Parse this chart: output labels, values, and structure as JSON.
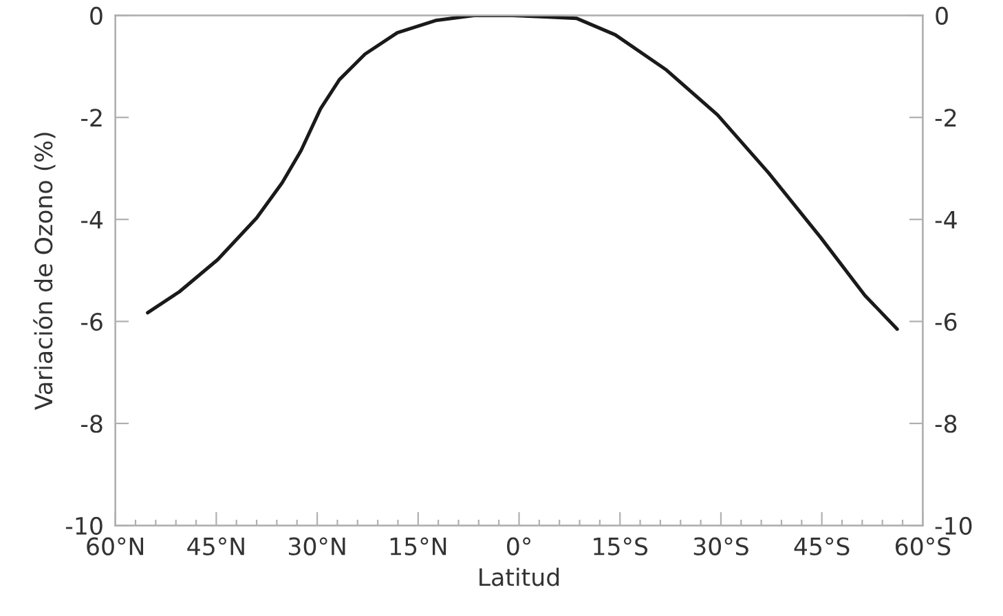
{
  "chart_data": {
    "type": "line",
    "xlabel": "Latitud",
    "ylabel": "Variación de Ozono (%)",
    "x": [
      55.2,
      50.5,
      44.8,
      39.0,
      35.2,
      32.4,
      29.5,
      26.7,
      22.9,
      18.1,
      12.4,
      6.7,
      1.0,
      -3.8,
      -8.6,
      -14.3,
      -21.9,
      -29.5,
      -37.1,
      -44.8,
      -51.4,
      -56.2
    ],
    "series": [
      {
        "color": "#1a1a1a",
        "values": [
          -5.83,
          -5.42,
          -4.79,
          -3.97,
          -3.28,
          -2.65,
          -1.83,
          -1.26,
          -0.76,
          -0.34,
          -0.1,
          0.0,
          0.0,
          -0.03,
          -0.06,
          -0.38,
          -1.07,
          -1.95,
          -3.09,
          -4.35,
          -5.49,
          -6.15
        ]
      }
    ],
    "xlim": [
      60,
      -60
    ],
    "xticks": [
      {
        "value": 60,
        "label": "60°N"
      },
      {
        "value": 57,
        "label": null
      },
      {
        "value": 54,
        "label": null
      },
      {
        "value": 51,
        "label": null
      },
      {
        "value": 48,
        "label": null
      },
      {
        "value": 45,
        "label": "45°N"
      },
      {
        "value": 42,
        "label": null
      },
      {
        "value": 39,
        "label": null
      },
      {
        "value": 36,
        "label": null
      },
      {
        "value": 33,
        "label": null
      },
      {
        "value": 30,
        "label": "30°N"
      },
      {
        "value": 27,
        "label": null
      },
      {
        "value": 24,
        "label": null
      },
      {
        "value": 21,
        "label": null
      },
      {
        "value": 18,
        "label": null
      },
      {
        "value": 15,
        "label": "15°N"
      },
      {
        "value": 12,
        "label": null
      },
      {
        "value": 9,
        "label": null
      },
      {
        "value": 6,
        "label": null
      },
      {
        "value": 3,
        "label": null
      },
      {
        "value": 0,
        "label": "0°"
      },
      {
        "value": -3,
        "label": null
      },
      {
        "value": -6,
        "label": null
      },
      {
        "value": -9,
        "label": null
      },
      {
        "value": -12,
        "label": null
      },
      {
        "value": -15,
        "label": "15°S"
      },
      {
        "value": -18,
        "label": null
      },
      {
        "value": -21,
        "label": null
      },
      {
        "value": -24,
        "label": null
      },
      {
        "value": -27,
        "label": null
      },
      {
        "value": -30,
        "label": "30°S"
      },
      {
        "value": -33,
        "label": null
      },
      {
        "value": -36,
        "label": null
      },
      {
        "value": -39,
        "label": null
      },
      {
        "value": -42,
        "label": null
      },
      {
        "value": -45,
        "label": "45°S"
      },
      {
        "value": -48,
        "label": null
      },
      {
        "value": -51,
        "label": null
      },
      {
        "value": -54,
        "label": null
      },
      {
        "value": -57,
        "label": null
      },
      {
        "value": -60,
        "label": "60°S"
      }
    ],
    "ylim": [
      -10,
      0
    ],
    "yticks": [
      -10,
      -8,
      -6,
      -4,
      -2,
      0
    ],
    "y2lim": [
      -10,
      0
    ],
    "y2ticks": [
      -10,
      -8,
      -6,
      -4,
      -2,
      0
    ],
    "grid": false,
    "legend": false,
    "marker": "none",
    "line_style": "solid"
  }
}
